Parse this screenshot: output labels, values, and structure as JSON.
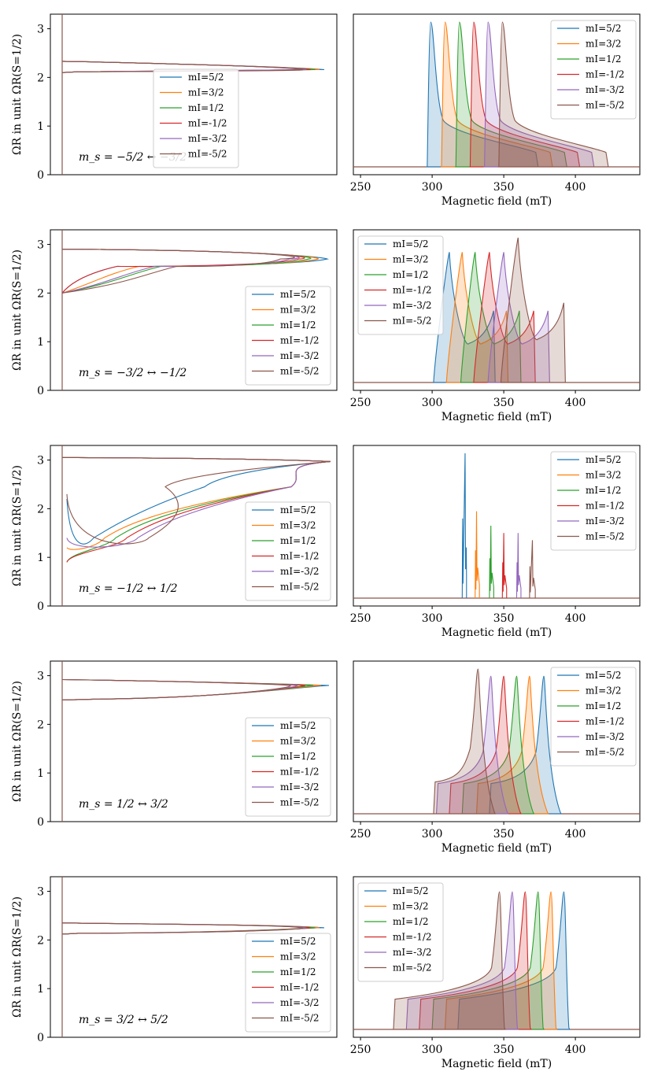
{
  "figure": {
    "ylabel": "ΩR in unit ΩR(S=1/2)",
    "xlabel": "Magnetic field (mT)",
    "legend_title": "",
    "colors": [
      "#1f77b4",
      "#ff7f0e",
      "#2ca02c",
      "#d62728",
      "#9467bd",
      "#8c564b"
    ]
  },
  "chart_data": [
    {
      "type": "line",
      "panel": "left",
      "row": 1,
      "label": "m_s = −5/2 ↔ −3/2",
      "ylabel": "ΩR in unit ΩR(S=1/2)",
      "ylim": [
        0,
        3.3
      ],
      "yticks": [
        "0",
        "1",
        "2",
        "3"
      ],
      "legend": "center",
      "series": [
        {
          "name": "mI=5/2",
          "bands": [
            2.1,
            2.33
          ],
          "peak": 2.16
        },
        {
          "name": "mI=3/2",
          "bands": [
            2.1,
            2.33
          ],
          "peak": 2.16
        },
        {
          "name": "mI=1/2",
          "bands": [
            2.1,
            2.33
          ],
          "peak": 2.16
        },
        {
          "name": "mI=-1/2",
          "bands": [
            2.1,
            2.33
          ],
          "peak": 2.16
        },
        {
          "name": "mI=-3/2",
          "bands": [
            2.1,
            2.33
          ],
          "peak": 2.16
        },
        {
          "name": "mI=-5/2",
          "bands": [
            2.1,
            2.33
          ],
          "peak": 2.16
        }
      ]
    },
    {
      "type": "area",
      "panel": "right",
      "row": 1,
      "xlabel": "Magnetic field (mT)",
      "xlim": [
        245,
        445
      ],
      "xticks": [
        "250",
        "300",
        "350",
        "400"
      ],
      "legend": "top-right",
      "series": [
        {
          "name": "mI=5/2",
          "start": 296,
          "peak": 299,
          "end": 374,
          "peak_height": 1
        },
        {
          "name": "mI=3/2",
          "start": 306,
          "peak": 309,
          "end": 384,
          "peak_height": 1
        },
        {
          "name": "mI=1/2",
          "start": 316,
          "peak": 319,
          "end": 394,
          "peak_height": 1
        },
        {
          "name": "mI=-1/2",
          "start": 326,
          "peak": 329,
          "end": 403,
          "peak_height": 1
        },
        {
          "name": "mI=-3/2",
          "start": 336,
          "peak": 339,
          "end": 413,
          "peak_height": 1
        },
        {
          "name": "mI=-5/2",
          "start": 346,
          "peak": 349,
          "end": 423,
          "peak_height": 1
        }
      ]
    },
    {
      "type": "line",
      "panel": "left",
      "row": 2,
      "label": "m_s = −3/2 ↔ −1/2",
      "ylabel": "ΩR in unit ΩR(S=1/2)",
      "ylim": [
        0,
        3.3
      ],
      "yticks": [
        "0",
        "1",
        "2",
        "3"
      ],
      "legend": "bottom-right",
      "series": [
        {
          "name": "mI=5/2",
          "bands": [
            2.0,
            2.9
          ],
          "peak": 2.7
        },
        {
          "name": "mI=3/2",
          "bands": [
            2.0,
            2.9
          ],
          "peak": 2.7
        },
        {
          "name": "mI=1/2",
          "bands": [
            2.0,
            2.9
          ],
          "peak": 2.7
        },
        {
          "name": "mI=-1/2",
          "bands": [
            2.0,
            2.9
          ],
          "peak": 2.7
        },
        {
          "name": "mI=-3/2",
          "bands": [
            2.0,
            2.9
          ],
          "peak": 2.7
        },
        {
          "name": "mI=-5/2",
          "bands": [
            2.0,
            2.9
          ],
          "peak": 2.7
        }
      ]
    },
    {
      "type": "area",
      "panel": "right",
      "row": 2,
      "xlabel": "Magnetic field (mT)",
      "xlim": [
        245,
        445
      ],
      "xticks": [
        "250",
        "300",
        "350",
        "400"
      ],
      "legend": "top-left",
      "series": [
        {
          "name": "mI=5/2",
          "start": 301,
          "peak": 312,
          "end": 344,
          "peak_height": 0.9
        },
        {
          "name": "mI=3/2",
          "start": 310,
          "peak": 321,
          "end": 353,
          "peak_height": 0.9
        },
        {
          "name": "mI=1/2",
          "start": 320,
          "peak": 330,
          "end": 362,
          "peak_height": 0.9
        },
        {
          "name": "mI=-1/2",
          "start": 329,
          "peak": 340,
          "end": 372,
          "peak_height": 0.9
        },
        {
          "name": "mI=-3/2",
          "start": 339,
          "peak": 350,
          "end": 382,
          "peak_height": 0.9
        },
        {
          "name": "mI=-5/2",
          "start": 348,
          "peak": 360,
          "end": 393,
          "peak_height": 1
        }
      ]
    },
    {
      "type": "line",
      "panel": "left",
      "row": 3,
      "label": "m_s = −1/2 ↔ 1/2",
      "ylabel": "ΩR in unit ΩR(S=1/2)",
      "ylim": [
        0,
        3.3
      ],
      "yticks": [
        "0",
        "1",
        "2",
        "3"
      ],
      "legend": "bottom-right",
      "series": [
        {
          "name": "mI=5/2",
          "bands": [
            2.2,
            3.05
          ],
          "peak": 2.97
        },
        {
          "name": "mI=3/2",
          "bands": [
            1.2,
            3.05
          ],
          "peak": 2.97
        },
        {
          "name": "mI=1/2",
          "bands": [
            0.9,
            3.05
          ],
          "peak": 2.97
        },
        {
          "name": "mI=-1/2",
          "bands": [
            0.9,
            3.05
          ],
          "peak": 2.97
        },
        {
          "name": "mI=-3/2",
          "bands": [
            1.4,
            3.05
          ],
          "peak": 2.97
        },
        {
          "name": "mI=-5/2",
          "bands": [
            2.3,
            3.05
          ],
          "peak": 2.97
        }
      ]
    },
    {
      "type": "line",
      "panel": "right",
      "row": 3,
      "xlabel": "Magnetic field (mT)",
      "xlim": [
        245,
        445
      ],
      "xticks": [
        "250",
        "300",
        "350",
        "400"
      ],
      "legend": "top-right",
      "series": [
        {
          "name": "mI=5/2",
          "start": 321,
          "peak": 323,
          "end": 324,
          "peak_height": 1
        },
        {
          "name": "mI=3/2",
          "start": 330,
          "peak": 331,
          "end": 333,
          "peak_height": 0.6
        },
        {
          "name": "mI=1/2",
          "start": 340,
          "peak": 341,
          "end": 343,
          "peak_height": 0.5
        },
        {
          "name": "mI=-1/2",
          "start": 349,
          "peak": 350,
          "end": 352,
          "peak_height": 0.45
        },
        {
          "name": "mI=-3/2",
          "start": 359,
          "peak": 360,
          "end": 362,
          "peak_height": 0.45
        },
        {
          "name": "mI=-5/2",
          "start": 368,
          "peak": 370,
          "end": 372,
          "peak_height": 0.4
        }
      ]
    },
    {
      "type": "line",
      "panel": "left",
      "row": 4,
      "label": "m_s = 1/2 ↔ 3/2",
      "ylabel": "ΩR in unit ΩR(S=1/2)",
      "ylim": [
        0,
        3.3
      ],
      "yticks": [
        "0",
        "1",
        "2",
        "3"
      ],
      "legend": "bottom-right",
      "series": [
        {
          "name": "mI=5/2",
          "bands": [
            2.5,
            2.92
          ],
          "peak": 2.8
        },
        {
          "name": "mI=3/2",
          "bands": [
            2.5,
            2.92
          ],
          "peak": 2.8
        },
        {
          "name": "mI=1/2",
          "bands": [
            2.5,
            2.92
          ],
          "peak": 2.8
        },
        {
          "name": "mI=-1/2",
          "bands": [
            2.5,
            2.92
          ],
          "peak": 2.8
        },
        {
          "name": "mI=-3/2",
          "bands": [
            2.5,
            2.92
          ],
          "peak": 2.8
        },
        {
          "name": "mI=-5/2",
          "bands": [
            2.5,
            2.92
          ],
          "peak": 2.8
        }
      ]
    },
    {
      "type": "area",
      "panel": "right",
      "row": 4,
      "xlabel": "Magnetic field (mT)",
      "xlim": [
        245,
        445
      ],
      "xticks": [
        "250",
        "300",
        "350",
        "400"
      ],
      "legend": "top-right",
      "series": [
        {
          "name": "mI=5/2",
          "start": 340,
          "peak": 378,
          "end": 390,
          "peak_height": 0.95
        },
        {
          "name": "mI=3/2",
          "start": 331,
          "peak": 368,
          "end": 381,
          "peak_height": 0.95
        },
        {
          "name": "mI=1/2",
          "start": 321,
          "peak": 359,
          "end": 371,
          "peak_height": 0.95
        },
        {
          "name": "mI=-1/2",
          "start": 312,
          "peak": 350,
          "end": 362,
          "peak_height": 0.95
        },
        {
          "name": "mI=-3/2",
          "start": 303,
          "peak": 341,
          "end": 353,
          "peak_height": 0.95
        },
        {
          "name": "mI=-5/2",
          "start": 301,
          "peak": 332,
          "end": 344,
          "peak_height": 1
        }
      ]
    },
    {
      "type": "line",
      "panel": "left",
      "row": 5,
      "label": "m_s = 3/2 ↔ 5/2",
      "ylabel": "ΩR in unit ΩR(S=1/2)",
      "ylim": [
        0,
        3.3
      ],
      "yticks": [
        "0",
        "1",
        "2",
        "3"
      ],
      "legend": "bottom-right",
      "series": [
        {
          "name": "mI=5/2",
          "bands": [
            2.12,
            2.35
          ],
          "peak": 2.25
        },
        {
          "name": "mI=3/2",
          "bands": [
            2.12,
            2.35
          ],
          "peak": 2.25
        },
        {
          "name": "mI=1/2",
          "bands": [
            2.12,
            2.35
          ],
          "peak": 2.25
        },
        {
          "name": "mI=-1/2",
          "bands": [
            2.12,
            2.35
          ],
          "peak": 2.25
        },
        {
          "name": "mI=-3/2",
          "bands": [
            2.12,
            2.35
          ],
          "peak": 2.25
        },
        {
          "name": "mI=-5/2",
          "bands": [
            2.12,
            2.35
          ],
          "peak": 2.25
        }
      ]
    },
    {
      "type": "area",
      "panel": "right",
      "row": 5,
      "xlabel": "Magnetic field (mT)",
      "xlim": [
        245,
        445
      ],
      "xticks": [
        "250",
        "300",
        "350",
        "400"
      ],
      "legend": "top-left",
      "series": [
        {
          "name": "mI=5/2",
          "start": 318,
          "peak": 392,
          "end": 396,
          "peak_height": 0.95
        },
        {
          "name": "mI=3/2",
          "start": 309,
          "peak": 383,
          "end": 387,
          "peak_height": 0.95
        },
        {
          "name": "mI=1/2",
          "start": 300,
          "peak": 374,
          "end": 378,
          "peak_height": 0.95
        },
        {
          "name": "mI=-1/2",
          "start": 291,
          "peak": 365,
          "end": 369,
          "peak_height": 0.95
        },
        {
          "name": "mI=-3/2",
          "start": 282,
          "peak": 356,
          "end": 360,
          "peak_height": 0.95
        },
        {
          "name": "mI=-5/2",
          "start": 273,
          "peak": 347,
          "end": 351,
          "peak_height": 0.95
        }
      ]
    }
  ]
}
